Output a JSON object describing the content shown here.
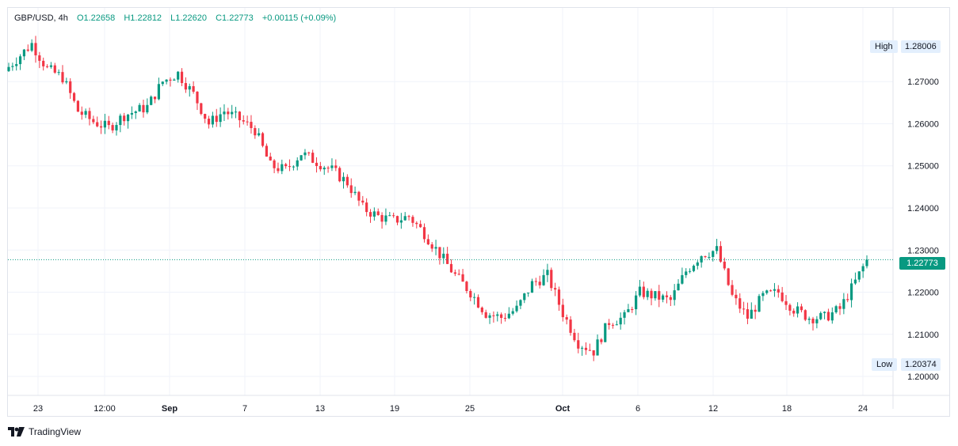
{
  "header": {
    "symbol": "GBP/USD",
    "interval": "4h",
    "open": "O1.22658",
    "high": "H1.22812",
    "low": "L1.22620",
    "close": "C1.22773",
    "change": "+0.00115 (+0.09%)"
  },
  "price_tags": {
    "high_label": "High",
    "high_value": "1.28006",
    "last_value": "1.22773",
    "low_label": "Low",
    "low_value": "1.20374"
  },
  "brand": "TradingView",
  "colors": {
    "up": "#089981",
    "down": "#f23645",
    "grid": "#f0f3fa",
    "text": "#131722",
    "tag_bg": "#e3effd"
  },
  "chart_data": {
    "type": "candlestick",
    "symbol": "GBP/USD",
    "interval": "4h",
    "ylim": [
      1.1955,
      1.2875
    ],
    "y_ticks": [
      "1.20000",
      "1.21000",
      "1.22000",
      "1.23000",
      "1.24000",
      "1.25000",
      "1.26000",
      "1.27000"
    ],
    "x_ticks": [
      "23",
      "12:00",
      "Sep",
      "7",
      "13",
      "19",
      "25",
      "Oct",
      "6",
      "12",
      "18",
      "24"
    ],
    "last_price": 1.22773,
    "high": 1.28006,
    "low": 1.20374,
    "path_points": [
      [
        0,
        1.2735
      ],
      [
        6,
        1.279
      ],
      [
        10,
        1.273
      ],
      [
        14,
        1.271
      ],
      [
        18,
        1.263
      ],
      [
        22,
        1.2605
      ],
      [
        26,
        1.259
      ],
      [
        30,
        1.262
      ],
      [
        36,
        1.264
      ],
      [
        40,
        1.27
      ],
      [
        44,
        1.272
      ],
      [
        48,
        1.267
      ],
      [
        52,
        1.26
      ],
      [
        56,
        1.263
      ],
      [
        60,
        1.261
      ],
      [
        64,
        1.2585
      ],
      [
        68,
        1.25
      ],
      [
        72,
        1.249
      ],
      [
        76,
        1.253
      ],
      [
        80,
        1.251
      ],
      [
        84,
        1.249
      ],
      [
        88,
        1.246
      ],
      [
        92,
        1.24
      ],
      [
        96,
        1.238
      ],
      [
        100,
        1.237
      ],
      [
        104,
        1.238
      ],
      [
        108,
        1.234
      ],
      [
        112,
        1.229
      ],
      [
        116,
        1.224
      ],
      [
        120,
        1.22
      ],
      [
        124,
        1.215
      ],
      [
        128,
        1.214
      ],
      [
        132,
        1.216
      ],
      [
        136,
        1.222
      ],
      [
        140,
        1.224
      ],
      [
        144,
        1.215
      ],
      [
        148,
        1.208
      ],
      [
        152,
        1.206
      ],
      [
        156,
        1.213
      ],
      [
        160,
        1.214
      ],
      [
        164,
        1.22
      ],
      [
        168,
        1.219
      ],
      [
        172,
        1.218
      ],
      [
        176,
        1.225
      ],
      [
        180,
        1.229
      ],
      [
        184,
        1.23
      ],
      [
        188,
        1.219
      ],
      [
        192,
        1.214
      ],
      [
        196,
        1.219
      ],
      [
        200,
        1.22
      ],
      [
        204,
        1.216
      ],
      [
        208,
        1.214
      ],
      [
        212,
        1.214
      ],
      [
        216,
        1.216
      ],
      [
        220,
        1.2225
      ],
      [
        223,
        1.2277
      ]
    ]
  }
}
